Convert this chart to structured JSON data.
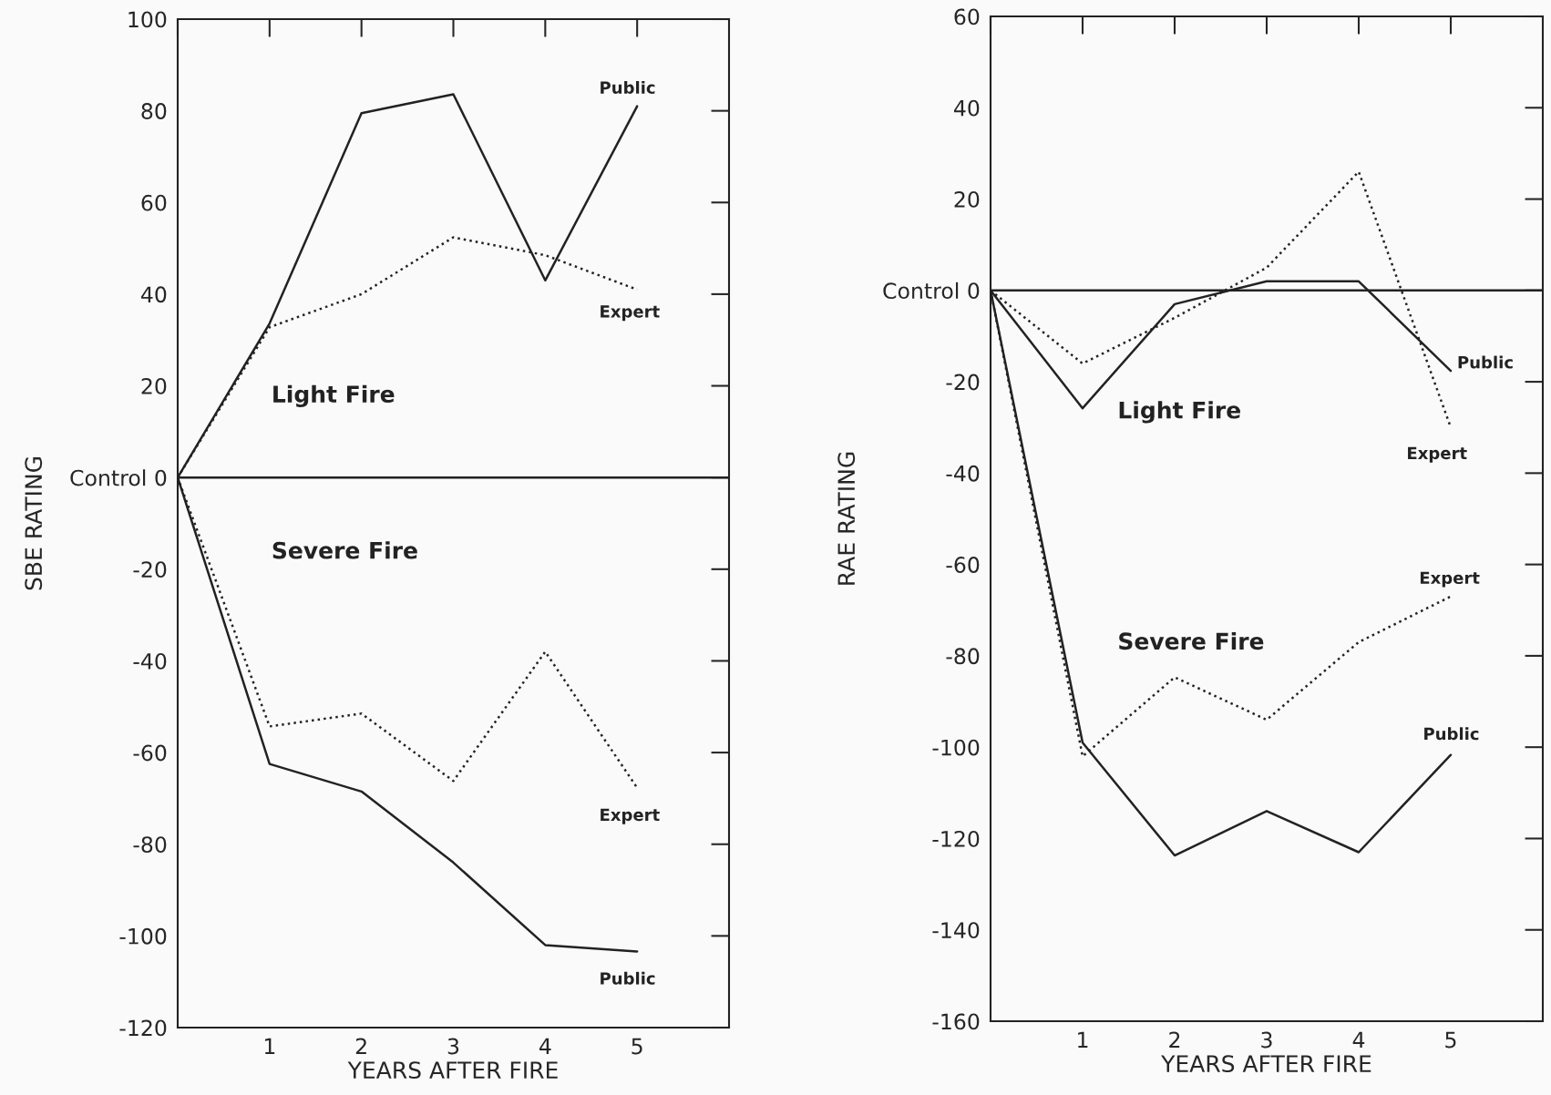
{
  "chart_data": [
    {
      "type": "line",
      "xlabel": "YEARS AFTER FIRE",
      "ylabel": "SBE RATING",
      "x": [
        0,
        1,
        2,
        3,
        4,
        5
      ],
      "xlim": [
        0,
        6
      ],
      "xticks": [
        {
          "value": 0,
          "label": null
        },
        1,
        2,
        3,
        4,
        5
      ],
      "ylim": [
        -120,
        100
      ],
      "yticks": [
        -120,
        -100,
        -80,
        -60,
        -40,
        -20,
        {
          "value": 0,
          "label": "Control 0"
        },
        20,
        40,
        60,
        80,
        100
      ],
      "series": [
        {
          "name": "Public",
          "color": "#222222",
          "line_style": "solid",
          "values": [
            0,
            33.6,
            79.5,
            83.6,
            43,
            81
          ]
        },
        {
          "name": "Expert",
          "color": "#222222",
          "line_style": "dotted",
          "values": [
            0,
            32.8,
            40,
            52.4,
            48.5,
            41
          ]
        },
        {
          "name": "Public",
          "color": "#222222",
          "line_style": "solid",
          "values": [
            0,
            -62.5,
            -68.5,
            -84,
            -102,
            -103.4
          ]
        },
        {
          "name": "Expert",
          "color": "#222222",
          "line_style": "dotted",
          "values": [
            0,
            -54.3,
            -51.5,
            -66.2,
            -38,
            -67.7
          ]
        }
      ],
      "ref_lines": [
        {
          "axis": "y",
          "value": 0,
          "color": "#222222",
          "line_style": "solid"
        }
      ],
      "annotations": [
        "Light Fire",
        "Severe Fire"
      ],
      "grid": false,
      "legend": false
    },
    {
      "type": "line",
      "xlabel": "YEARS AFTER FIRE",
      "ylabel": "RAE RATING",
      "x": [
        0,
        1,
        2,
        3,
        4,
        5
      ],
      "xlim": [
        0,
        6
      ],
      "xticks": [
        {
          "value": 0,
          "label": null
        },
        1,
        2,
        3,
        4,
        5
      ],
      "ylim": [
        -160,
        60
      ],
      "yticks": [
        -160,
        -140,
        -120,
        -100,
        -80,
        -60,
        -40,
        -20,
        {
          "value": 0,
          "label": "Control 0"
        },
        20,
        40,
        60
      ],
      "series": [
        {
          "name": "Public",
          "color": "#222222",
          "line_style": "solid",
          "values": [
            0,
            -25.8,
            -3,
            2,
            2,
            -17.6
          ]
        },
        {
          "name": "Expert",
          "color": "#222222",
          "line_style": "dotted",
          "values": [
            0,
            -16,
            -6,
            5,
            26,
            -30
          ]
        },
        {
          "name": "Public",
          "color": "#222222",
          "line_style": "solid",
          "values": [
            0,
            -99,
            -123.7,
            -114,
            -123,
            -101.7
          ]
        },
        {
          "name": "Expert",
          "color": "#222222",
          "line_style": "dotted",
          "values": [
            0,
            -102,
            -84.7,
            -94,
            -77,
            -67
          ]
        }
      ],
      "ref_lines": [
        {
          "axis": "y",
          "value": 0,
          "color": "#222222",
          "line_style": "solid"
        }
      ],
      "annotations": [
        "Light Fire",
        "Severe Fire"
      ],
      "grid": false,
      "legend": false
    }
  ]
}
